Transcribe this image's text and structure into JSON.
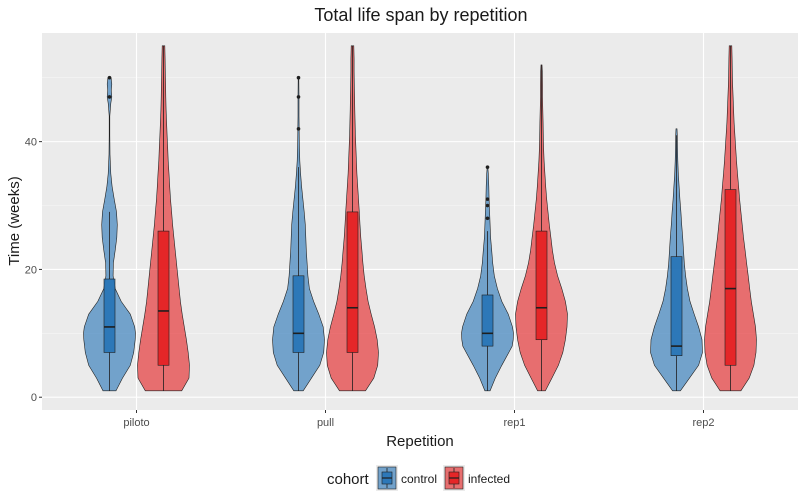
{
  "chart_data": {
    "type": "violin",
    "title": "Total life span by repetition",
    "xlabel": "Repetition",
    "ylabel": "Time (weeks)",
    "categories": [
      "piloto",
      "pull",
      "rep1",
      "rep2"
    ],
    "ylim": [
      -2,
      57
    ],
    "yticks": [
      0,
      20,
      40
    ],
    "grid": true,
    "legend": {
      "title": "cohort",
      "position": "bottom"
    },
    "series": [
      {
        "name": "control",
        "color": "#2171b5",
        "violins": [
          {
            "category": "piloto",
            "min": 1,
            "max": 50,
            "q1": 7,
            "median": 11,
            "q3": 18.5,
            "whisker_low": 1,
            "whisker_high": 29,
            "outliers": [
              47,
              50
            ],
            "density": [
              [
                1,
                0.25
              ],
              [
                3,
                0.5
              ],
              [
                5,
                0.8
              ],
              [
                7,
                0.93
              ],
              [
                9,
                0.99
              ],
              [
                10,
                1.0
              ],
              [
                11,
                0.97
              ],
              [
                13,
                0.8
              ],
              [
                15,
                0.45
              ],
              [
                17,
                0.22
              ],
              [
                19,
                0.14
              ],
              [
                21,
                0.15
              ],
              [
                23,
                0.22
              ],
              [
                25,
                0.28
              ],
              [
                27,
                0.3
              ],
              [
                29,
                0.27
              ],
              [
                31,
                0.18
              ],
              [
                33,
                0.1
              ],
              [
                35,
                0.05
              ],
              [
                38,
                0.02
              ],
              [
                41,
                0.01
              ],
              [
                44,
                0.01
              ],
              [
                46,
                0.05
              ],
              [
                47,
                0.09
              ],
              [
                48,
                0.07
              ],
              [
                49,
                0.09
              ],
              [
                50,
                0.06
              ]
            ]
          },
          {
            "category": "pull",
            "min": 1,
            "max": 50,
            "q1": 7,
            "median": 10,
            "q3": 19,
            "whisker_low": 1,
            "whisker_high": 36,
            "outliers": [
              42,
              47,
              50
            ],
            "density": [
              [
                1,
                0.18
              ],
              [
                3,
                0.5
              ],
              [
                5,
                0.82
              ],
              [
                7,
                0.97
              ],
              [
                9,
                1.0
              ],
              [
                11,
                0.95
              ],
              [
                13,
                0.78
              ],
              [
                15,
                0.58
              ],
              [
                17,
                0.42
              ],
              [
                19,
                0.36
              ],
              [
                21,
                0.33
              ],
              [
                23,
                0.3
              ],
              [
                25,
                0.28
              ],
              [
                27,
                0.26
              ],
              [
                29,
                0.22
              ],
              [
                31,
                0.17
              ],
              [
                33,
                0.12
              ],
              [
                35,
                0.08
              ],
              [
                37,
                0.05
              ],
              [
                40,
                0.03
              ],
              [
                44,
                0.02
              ],
              [
                47,
                0.02
              ],
              [
                50,
                0.01
              ]
            ]
          },
          {
            "category": "rep1",
            "min": 1,
            "max": 36,
            "q1": 8,
            "median": 10,
            "q3": 16,
            "whisker_low": 1,
            "whisker_high": 26,
            "outliers": [
              28,
              30,
              31,
              36
            ],
            "density": [
              [
                1,
                0.1
              ],
              [
                3,
                0.3
              ],
              [
                5,
                0.55
              ],
              [
                7,
                0.82
              ],
              [
                8,
                0.95
              ],
              [
                9,
                0.99
              ],
              [
                10,
                1.0
              ],
              [
                11,
                0.96
              ],
              [
                13,
                0.8
              ],
              [
                15,
                0.55
              ],
              [
                17,
                0.38
              ],
              [
                19,
                0.26
              ],
              [
                21,
                0.2
              ],
              [
                23,
                0.16
              ],
              [
                25,
                0.12
              ],
              [
                27,
                0.1
              ],
              [
                29,
                0.08
              ],
              [
                31,
                0.06
              ],
              [
                33,
                0.05
              ],
              [
                35,
                0.03
              ],
              [
                36,
                0.01
              ]
            ]
          },
          {
            "category": "rep2",
            "min": 1,
            "max": 42,
            "q1": 6.5,
            "median": 8,
            "q3": 22,
            "whisker_low": 1,
            "whisker_high": 41,
            "outliers": [],
            "density": [
              [
                1,
                0.15
              ],
              [
                3,
                0.5
              ],
              [
                5,
                0.85
              ],
              [
                7,
                1.0
              ],
              [
                9,
                0.98
              ],
              [
                11,
                0.85
              ],
              [
                13,
                0.68
              ],
              [
                15,
                0.52
              ],
              [
                17,
                0.42
              ],
              [
                19,
                0.35
              ],
              [
                21,
                0.3
              ],
              [
                23,
                0.27
              ],
              [
                25,
                0.24
              ],
              [
                27,
                0.2
              ],
              [
                29,
                0.17
              ],
              [
                31,
                0.13
              ],
              [
                33,
                0.1
              ],
              [
                35,
                0.07
              ],
              [
                37,
                0.05
              ],
              [
                39,
                0.04
              ],
              [
                41,
                0.03
              ],
              [
                42,
                0.02
              ]
            ]
          }
        ]
      },
      {
        "name": "infected",
        "color": "#e41a1c",
        "violins": [
          {
            "category": "piloto",
            "min": 1,
            "max": 55,
            "q1": 5,
            "median": 13.5,
            "q3": 26,
            "whisker_low": 1,
            "whisker_high": 55,
            "outliers": [],
            "density": [
              [
                1,
                0.7
              ],
              [
                3,
                0.98
              ],
              [
                5,
                1.0
              ],
              [
                7,
                0.95
              ],
              [
                9,
                0.88
              ],
              [
                11,
                0.8
              ],
              [
                13,
                0.72
              ],
              [
                15,
                0.65
              ],
              [
                17,
                0.6
              ],
              [
                19,
                0.55
              ],
              [
                21,
                0.5
              ],
              [
                23,
                0.45
              ],
              [
                25,
                0.4
              ],
              [
                27,
                0.35
              ],
              [
                29,
                0.31
              ],
              [
                31,
                0.27
              ],
              [
                33,
                0.24
              ],
              [
                35,
                0.21
              ],
              [
                37,
                0.18
              ],
              [
                39,
                0.16
              ],
              [
                41,
                0.14
              ],
              [
                43,
                0.12
              ],
              [
                45,
                0.1
              ],
              [
                47,
                0.09
              ],
              [
                49,
                0.08
              ],
              [
                51,
                0.07
              ],
              [
                53,
                0.06
              ],
              [
                55,
                0.05
              ]
            ]
          },
          {
            "category": "pull",
            "min": 1,
            "max": 55,
            "q1": 7,
            "median": 14,
            "q3": 29,
            "whisker_low": 1,
            "whisker_high": 55,
            "outliers": [],
            "density": [
              [
                1,
                0.5
              ],
              [
                3,
                0.82
              ],
              [
                5,
                0.97
              ],
              [
                7,
                1.0
              ],
              [
                9,
                0.95
              ],
              [
                11,
                0.85
              ],
              [
                13,
                0.72
              ],
              [
                15,
                0.6
              ],
              [
                17,
                0.52
              ],
              [
                19,
                0.45
              ],
              [
                21,
                0.4
              ],
              [
                23,
                0.36
              ],
              [
                25,
                0.32
              ],
              [
                27,
                0.29
              ],
              [
                29,
                0.26
              ],
              [
                31,
                0.23
              ],
              [
                33,
                0.2
              ],
              [
                35,
                0.17
              ],
              [
                37,
                0.15
              ],
              [
                39,
                0.13
              ],
              [
                41,
                0.11
              ],
              [
                43,
                0.1
              ],
              [
                45,
                0.09
              ],
              [
                47,
                0.08
              ],
              [
                49,
                0.07
              ],
              [
                51,
                0.06
              ],
              [
                53,
                0.06
              ],
              [
                55,
                0.05
              ]
            ]
          },
          {
            "category": "rep1",
            "min": 1,
            "max": 52,
            "q1": 9,
            "median": 14,
            "q3": 26,
            "whisker_low": 1,
            "whisker_high": 52,
            "outliers": [],
            "density": [
              [
                1,
                0.15
              ],
              [
                3,
                0.4
              ],
              [
                5,
                0.65
              ],
              [
                7,
                0.82
              ],
              [
                9,
                0.92
              ],
              [
                11,
                0.98
              ],
              [
                13,
                1.0
              ],
              [
                15,
                0.92
              ],
              [
                17,
                0.78
              ],
              [
                19,
                0.62
              ],
              [
                21,
                0.5
              ],
              [
                23,
                0.42
              ],
              [
                25,
                0.36
              ],
              [
                27,
                0.3
              ],
              [
                29,
                0.25
              ],
              [
                31,
                0.2
              ],
              [
                33,
                0.16
              ],
              [
                35,
                0.13
              ],
              [
                37,
                0.1
              ],
              [
                39,
                0.08
              ],
              [
                41,
                0.07
              ],
              [
                43,
                0.06
              ],
              [
                45,
                0.05
              ],
              [
                47,
                0.04
              ],
              [
                49,
                0.04
              ],
              [
                51,
                0.03
              ],
              [
                52,
                0.02
              ]
            ]
          },
          {
            "category": "rep2",
            "min": 1,
            "max": 55,
            "q1": 5,
            "median": 17,
            "q3": 32.5,
            "whisker_low": 1,
            "whisker_high": 55,
            "outliers": [],
            "density": [
              [
                1,
                0.4
              ],
              [
                3,
                0.72
              ],
              [
                5,
                0.9
              ],
              [
                7,
                0.98
              ],
              [
                9,
                1.0
              ],
              [
                11,
                0.96
              ],
              [
                13,
                0.88
              ],
              [
                15,
                0.8
              ],
              [
                17,
                0.74
              ],
              [
                19,
                0.68
              ],
              [
                21,
                0.62
              ],
              [
                23,
                0.56
              ],
              [
                25,
                0.5
              ],
              [
                27,
                0.45
              ],
              [
                29,
                0.4
              ],
              [
                31,
                0.35
              ],
              [
                33,
                0.31
              ],
              [
                35,
                0.27
              ],
              [
                37,
                0.23
              ],
              [
                39,
                0.2
              ],
              [
                41,
                0.17
              ],
              [
                43,
                0.14
              ],
              [
                45,
                0.12
              ],
              [
                47,
                0.1
              ],
              [
                49,
                0.08
              ],
              [
                51,
                0.07
              ],
              [
                53,
                0.06
              ],
              [
                55,
                0.05
              ]
            ]
          }
        ]
      }
    ]
  }
}
